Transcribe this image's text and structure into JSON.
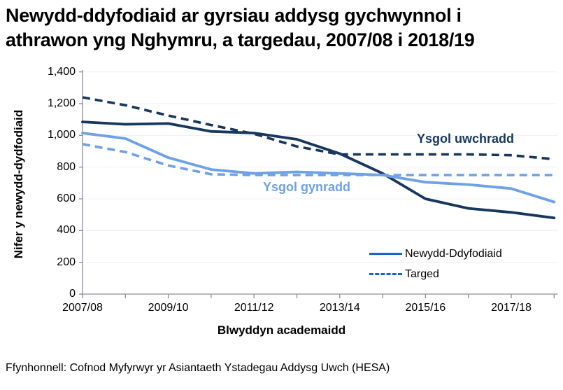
{
  "title": {
    "line1": "Newydd-ddyfodiaid ar gyrsiau addysg gychwynnol i",
    "line2": "athrawon yng Nghymru, a targedau, 2007/08 i 2018/19"
  },
  "chart_data": {
    "type": "line",
    "title": "Newydd-ddyfodiaid ar gyrsiau addysg gychwynnol i athrawon yng Nghymru, a targedau, 2007/08 i 2018/19",
    "xlabel": "Blwyddyn academaidd",
    "ylabel": "Nifer y newydd-dydfodiaid",
    "categories": [
      "2007/08",
      "2008/09",
      "2009/10",
      "2010/11",
      "2011/12",
      "2012/13",
      "2013/14",
      "2014/15",
      "2015/16",
      "2016/17",
      "2017/18",
      "2018/19"
    ],
    "x_tick_labels": [
      "2007/08",
      "2009/10",
      "2011/12",
      "2013/14",
      "2015/16",
      "2017/18"
    ],
    "y_ticks": [
      "0",
      "200",
      "400",
      "600",
      "800",
      "1,000",
      "1,200",
      "1,400"
    ],
    "ylim": [
      0,
      1400
    ],
    "y_step": 200,
    "grid": "horizontal-light",
    "series": [
      {
        "name": "Ysgol uwchradd - Newydd-Ddyfodiaid",
        "group": "Ysgol uwchradd",
        "line_style": "solid",
        "color": "#17375E",
        "values": [
          1085,
          1070,
          1075,
          1025,
          1015,
          975,
          885,
          760,
          600,
          540,
          515,
          480
        ]
      },
      {
        "name": "Ysgol uwchradd - Targed",
        "group": "Ysgol uwchradd",
        "line_style": "dashed",
        "color": "#17375E",
        "values": [
          1240,
          1190,
          1125,
          1065,
          1010,
          930,
          880,
          880,
          880,
          880,
          875,
          850
        ]
      },
      {
        "name": "Ysgol gynradd - Newydd-Ddyfodiaid",
        "group": "Ysgol gynradd",
        "line_style": "solid",
        "color": "#6FA1E6",
        "values": [
          1015,
          980,
          860,
          785,
          760,
          770,
          760,
          750,
          705,
          690,
          665,
          580
        ]
      },
      {
        "name": "Ysgol gynradd - Targed",
        "group": "Ysgol gynradd",
        "line_style": "dashed",
        "color": "#6FA1E6",
        "values": [
          945,
          895,
          810,
          755,
          750,
          750,
          750,
          750,
          750,
          750,
          750,
          750
        ]
      }
    ],
    "annotations": [
      {
        "text": "Ysgol uwchradd",
        "color": "#17375E"
      },
      {
        "text": "Ysgol gynradd",
        "color": "#6FA1E6"
      }
    ],
    "legend": {
      "position": "inside-lower-right",
      "swatch_color": "#1366D2",
      "items": [
        {
          "label": "Newydd-Ddyfodiaid",
          "line_style": "solid"
        },
        {
          "label": "Targed",
          "line_style": "dashed"
        }
      ]
    },
    "axis_color": "#8C8C99",
    "gridline_color": "#F0F0F0"
  },
  "source": "Ffynhonnell: Cofnod Myfyrwyr yr Asiantaeth Ystadegau Addysg Uwch (HESA)"
}
